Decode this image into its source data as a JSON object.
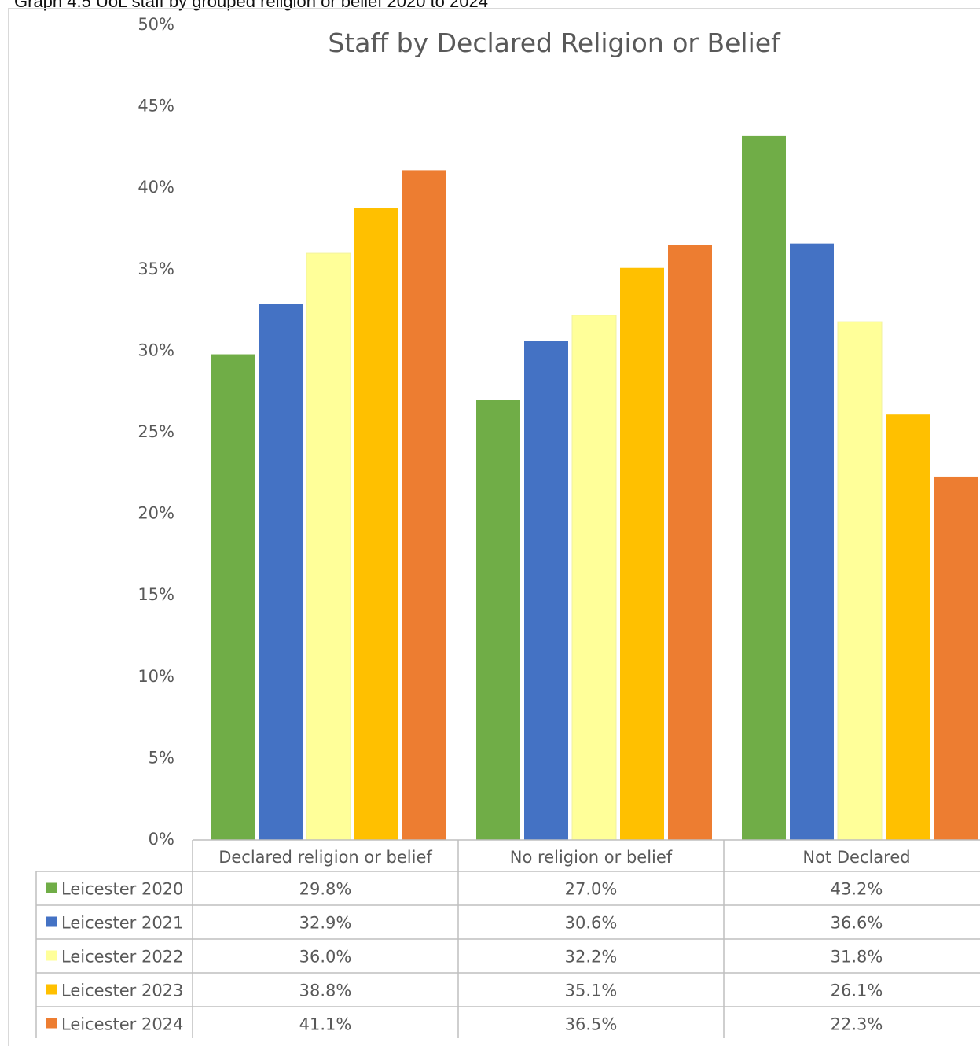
{
  "caption": "Graph 4.5 UoL staff by grouped religion or belief 2020 to 2024",
  "chart_data": {
    "type": "bar",
    "title": "Staff by Declared Religion or Belief",
    "categories": [
      "Declared religion or belief",
      "No religion or belief",
      "Not Declared"
    ],
    "y_ticks": [
      "0%",
      "5%",
      "10%",
      "15%",
      "20%",
      "25%",
      "30%",
      "35%",
      "40%",
      "45%",
      "50%"
    ],
    "ylim": [
      0,
      50
    ],
    "series": [
      {
        "name": "Leicester 2020",
        "color": "#70ad47",
        "values": [
          29.8,
          27.0,
          43.2
        ],
        "labels": [
          "29.8%",
          "27.0%",
          "43.2%"
        ]
      },
      {
        "name": "Leicester 2021",
        "color": "#4472c4",
        "values": [
          32.9,
          30.6,
          36.6
        ],
        "labels": [
          "32.9%",
          "30.6%",
          "36.6%"
        ]
      },
      {
        "name": "Leicester 2022",
        "color": "#ffff99",
        "values": [
          36.0,
          32.2,
          31.8
        ],
        "labels": [
          "36.0%",
          "32.2%",
          "31.8%"
        ]
      },
      {
        "name": "Leicester 2023",
        "color": "#ffc000",
        "values": [
          38.8,
          35.1,
          26.1
        ],
        "labels": [
          "38.8%",
          "35.1%",
          "26.1%"
        ]
      },
      {
        "name": "Leicester 2024",
        "color": "#ed7d31",
        "values": [
          41.1,
          36.5,
          22.3
        ],
        "labels": [
          "41.1%",
          "36.5%",
          "22.3%"
        ]
      }
    ],
    "grid": false,
    "legend": "data-table"
  }
}
